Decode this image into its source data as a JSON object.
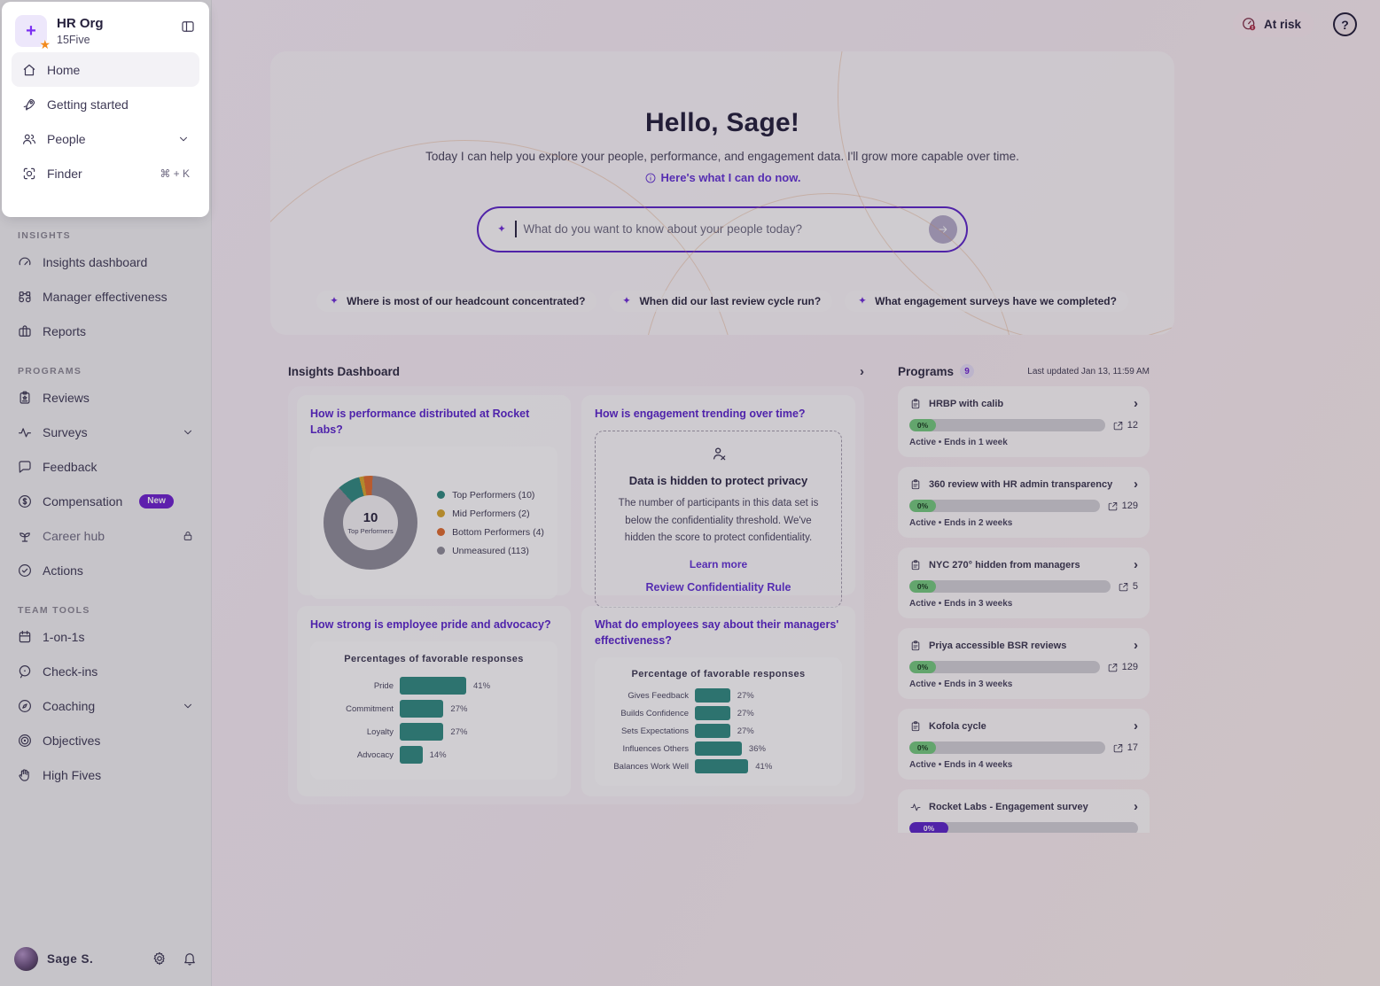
{
  "colors": {
    "accent_purple": "#6d2bd9",
    "teal": "#2f8a80",
    "gold": "#d9a62c",
    "orange": "#e06b2d",
    "gray_unmeasured": "#8f8c99",
    "progress_green": "#74c97e",
    "progress_purple": "#5b23c9",
    "risk_red": "#b03049"
  },
  "workspace": {
    "org": "HR Org",
    "product": "15Five"
  },
  "sidebar": {
    "home": "Home",
    "getting_started": "Getting started",
    "people": "People",
    "finder": "Finder",
    "finder_shortcut": "⌘ + K",
    "insights_title": "INSIGHTS",
    "insights": [
      "Insights dashboard",
      "Manager effectiveness",
      "Reports"
    ],
    "programs_title": "PROGRAMS",
    "programs": [
      "Reviews",
      "Surveys",
      "Feedback",
      "Compensation",
      "Career hub",
      "Actions"
    ],
    "compensation_badge": "New",
    "team_title": "TEAM TOOLS",
    "team": [
      "1-on-1s",
      "Check-ins",
      "Coaching",
      "Objectives",
      "High Fives"
    ],
    "user_name": "Sage S."
  },
  "topbar": {
    "at_risk": "At risk",
    "help": "?"
  },
  "hero": {
    "greeting": "Hello, Sage!",
    "subtitle": "Today I can help you explore your people, performance, and engagement data. I'll grow more capable over time.",
    "cando_link": "Here's what I can do now.",
    "search_placeholder": "What do you want to know about your people today?",
    "chips": [
      "Where is most of our headcount concentrated?",
      "When did our last review cycle run?",
      "What engagement surveys have we completed?"
    ]
  },
  "insights_panel": {
    "title": "Insights Dashboard",
    "q2": "How is engagement trending over time?",
    "privacy": {
      "title": "Data is hidden to protect privacy",
      "body": "The number of participants in this data set is below the confidentiality threshold. We've hidden the score to protect confidentiality.",
      "learn_more": "Learn more",
      "review_rule": "Review Confidentiality Rule"
    }
  },
  "chart_data": [
    {
      "type": "pie",
      "title": "How is performance distributed at Rocket Labs?",
      "categories": [
        "Top Performers",
        "Mid Performers",
        "Bottom Performers",
        "Unmeasured"
      ],
      "values": [
        10,
        2,
        4,
        113
      ],
      "colors": [
        "#2f8a80",
        "#d9a62c",
        "#e06b2d",
        "#8f8c99"
      ],
      "legend": [
        "Top Performers (10)",
        "Mid Performers (2)",
        "Bottom Performers (4)",
        "Unmeasured (113)"
      ],
      "legend_position": "right",
      "center_value": "10",
      "center_label": "Top Performers"
    },
    {
      "type": "bar",
      "orientation": "horizontal",
      "question": "How strong is employee pride and advocacy?",
      "title": "Percentages of favorable responses",
      "categories": [
        "Pride",
        "Commitment",
        "Loyalty",
        "Advocacy"
      ],
      "values": [
        41,
        27,
        27,
        14
      ],
      "unit": "%",
      "xlim": [
        0,
        100
      ],
      "color": "#2f8a80"
    },
    {
      "type": "bar",
      "orientation": "horizontal",
      "question": "What do employees say about their managers' effectiveness?",
      "title": "Percentage of favorable responses",
      "categories": [
        "Gives Feedback",
        "Builds Confidence",
        "Sets Expectations",
        "Influences Others",
        "Balances Work Well"
      ],
      "values": [
        27,
        27,
        27,
        36,
        41
      ],
      "unit": "%",
      "xlim": [
        0,
        100
      ],
      "color": "#2f8a80"
    }
  ],
  "programs_panel": {
    "title": "Programs",
    "count": "9",
    "last_updated": "Last updated Jan 13, 11:59 AM",
    "items": [
      {
        "name": "HRBP with calib",
        "progress": "0%",
        "count": "12",
        "status": "Active • Ends in 1 week"
      },
      {
        "name": "360 review with HR admin transparency",
        "progress": "0%",
        "count": "129",
        "status": "Active • Ends in 2 weeks"
      },
      {
        "name": "NYC 270° hidden from managers",
        "progress": "0%",
        "count": "5",
        "status": "Active • Ends in 3 weeks"
      },
      {
        "name": "Priya accessible BSR reviews",
        "progress": "0%",
        "count": "129",
        "status": "Active • Ends in 3 weeks"
      },
      {
        "name": "Kofola cycle",
        "progress": "0%",
        "count": "17",
        "status": "Active • Ends in 4 weeks"
      },
      {
        "name": "Rocket Labs - Engagement survey",
        "progress": "0%"
      }
    ]
  }
}
